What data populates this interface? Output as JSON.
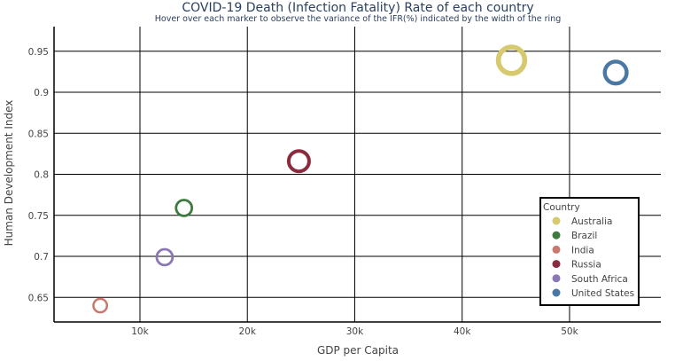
{
  "chart_data": {
    "type": "scatter",
    "title": "COVID-19 Death (Infection Fatality) Rate of each country",
    "subtitle": "Hover over each marker to observe the variance of the IFR(%) indicated by the width of the ring",
    "xlabel": "GDP per Capita",
    "ylabel": "Human Development Index",
    "xlim": [
      2000,
      58500
    ],
    "ylim": [
      0.62,
      0.98
    ],
    "x_ticks": [
      10000,
      20000,
      30000,
      40000,
      50000
    ],
    "x_tick_labels": [
      "10k",
      "20k",
      "30k",
      "40k",
      "50k"
    ],
    "y_ticks": [
      0.65,
      0.7,
      0.75,
      0.8,
      0.85,
      0.9,
      0.95
    ],
    "y_tick_labels": [
      "0.65",
      "0.7",
      "0.75",
      "0.8",
      "0.85",
      "0.9",
      "0.95"
    ],
    "grid": true,
    "legend_title": "Country",
    "legend_position": "bottom-right",
    "series": [
      {
        "name": "Australia",
        "color": "#d6c96e",
        "x": 44600,
        "y": 0.939,
        "ifr_size": 14
      },
      {
        "name": "Brazil",
        "color": "#3d7a3d",
        "x": 14100,
        "y": 0.759,
        "ifr_size": 7
      },
      {
        "name": "India",
        "color": "#c9786e",
        "x": 6300,
        "y": 0.64,
        "ifr_size": 5.5
      },
      {
        "name": "Russia",
        "color": "#8b2c3e",
        "x": 24800,
        "y": 0.816,
        "ifr_size": 10
      },
      {
        "name": "South Africa",
        "color": "#8a78b4",
        "x": 12300,
        "y": 0.699,
        "ifr_size": 7
      },
      {
        "name": "United States",
        "color": "#4a78a4",
        "x": 54300,
        "y": 0.924,
        "ifr_size": 11
      }
    ]
  }
}
